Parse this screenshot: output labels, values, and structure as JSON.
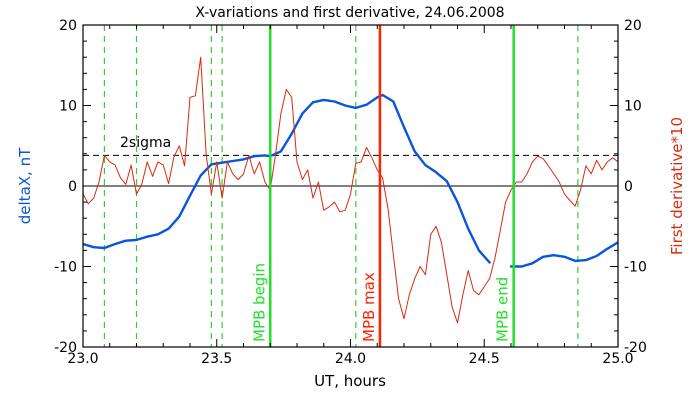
{
  "chart_data": {
    "type": "line",
    "title": "X-variations and first derivative, 24.06.2008",
    "xlabel": "UT, hours",
    "ylabel_left": "deltaX, nT",
    "ylabel_right": "First derivative*10",
    "xlim": [
      23.0,
      25.0
    ],
    "ylim": [
      -20,
      20
    ],
    "x_ticks": [
      23.0,
      23.5,
      24.0,
      24.5,
      25.0
    ],
    "x_tick_labels": [
      "23.0",
      "23.5",
      "24.0",
      "24.5",
      "25.0"
    ],
    "y_ticks": [
      -20,
      -10,
      0,
      10,
      20
    ],
    "y_tick_labels": [
      "-20",
      "-10",
      "0",
      "10",
      "20"
    ],
    "zero_line": 0,
    "sigma_line": {
      "y": 3.8,
      "label": "2sigma"
    },
    "colors": {
      "deltaX": "#0b56d6",
      "derivative": "#d82a10",
      "mpb_boundary": "#22e02a",
      "mpb_max": "#ff2200",
      "dashed_green": "#33cc33"
    },
    "dashed_markers": [
      23.08,
      23.2,
      23.48,
      23.52,
      24.02,
      24.85
    ],
    "mpb_lines": [
      {
        "x": 23.7,
        "label": "MPB begin",
        "kind": "boundary"
      },
      {
        "x": 24.11,
        "label": "MPB max",
        "kind": "max"
      },
      {
        "x": 24.61,
        "label": "MPB end",
        "kind": "boundary"
      }
    ],
    "series": [
      {
        "name": "deltaX",
        "segments": [
          {
            "x": [
              23.0,
              23.04,
              23.08,
              23.12,
              23.16,
              23.2,
              23.24,
              23.28,
              23.32,
              23.36,
              23.4,
              23.44,
              23.48,
              23.52,
              23.56,
              23.6,
              23.64,
              23.68,
              23.7,
              23.74,
              23.78,
              23.82,
              23.86,
              23.9,
              23.94,
              23.98,
              24.02,
              24.06,
              24.1,
              24.12,
              24.16,
              24.2,
              24.24,
              24.28,
              24.32,
              24.36,
              24.4,
              24.44,
              24.48,
              24.52
            ],
            "y": [
              -7.2,
              -7.6,
              -7.7,
              -7.2,
              -6.8,
              -6.7,
              -6.3,
              -6.0,
              -5.3,
              -3.8,
              -1.2,
              1.3,
              2.7,
              2.9,
              3.1,
              3.3,
              3.7,
              3.8,
              3.7,
              4.3,
              6.5,
              9.0,
              10.4,
              10.7,
              10.5,
              10.0,
              9.7,
              10.1,
              11.0,
              11.3,
              10.5,
              7.3,
              4.3,
              2.6,
              1.7,
              0.6,
              -2.0,
              -5.3,
              -8.0,
              -9.5
            ]
          },
          {
            "x": [
              24.6,
              24.64,
              24.68,
              24.72,
              24.76,
              24.8,
              24.84,
              24.88,
              24.92,
              24.96,
              25.0
            ],
            "y": [
              -10.0,
              -10.0,
              -9.6,
              -8.8,
              -8.6,
              -8.8,
              -9.3,
              -9.2,
              -8.7,
              -7.8,
              -7.0
            ]
          }
        ]
      },
      {
        "name": "First derivative*10",
        "x": [
          23.0,
          23.02,
          23.04,
          23.06,
          23.08,
          23.1,
          23.12,
          23.14,
          23.16,
          23.18,
          23.2,
          23.22,
          23.24,
          23.26,
          23.28,
          23.3,
          23.32,
          23.34,
          23.36,
          23.38,
          23.4,
          23.42,
          23.44,
          23.46,
          23.48,
          23.5,
          23.52,
          23.54,
          23.56,
          23.58,
          23.6,
          23.62,
          23.64,
          23.66,
          23.68,
          23.7,
          23.72,
          23.74,
          23.76,
          23.78,
          23.8,
          23.82,
          23.84,
          23.86,
          23.88,
          23.9,
          23.92,
          23.94,
          23.96,
          23.98,
          24.0,
          24.02,
          24.04,
          24.06,
          24.08,
          24.1,
          24.12,
          24.14,
          24.16,
          24.18,
          24.2,
          24.22,
          24.24,
          24.26,
          24.28,
          24.3,
          24.32,
          24.34,
          24.36,
          24.38,
          24.4,
          24.42,
          24.44,
          24.46,
          24.48,
          24.5,
          24.52,
          24.54,
          24.56,
          24.58,
          24.6,
          24.62,
          24.64,
          24.66,
          24.68,
          24.7,
          24.72,
          24.74,
          24.76,
          24.78,
          24.8,
          24.82,
          24.84,
          24.86,
          24.88,
          24.9,
          24.92,
          24.94,
          24.96,
          24.98,
          25.0
        ],
        "y": [
          -1.0,
          -2.2,
          -1.5,
          0.5,
          3.8,
          3.0,
          2.6,
          1.0,
          0.2,
          2.6,
          -1.0,
          0.2,
          3.0,
          1.2,
          3.0,
          2.6,
          0.3,
          3.6,
          5.0,
          2.5,
          11.0,
          11.2,
          16.0,
          4.0,
          -1.0,
          3.0,
          -1.5,
          3.0,
          1.5,
          0.8,
          1.5,
          3.8,
          1.5,
          3.0,
          0.5,
          -0.5,
          4.0,
          9.0,
          12.0,
          11.0,
          3.0,
          0.8,
          2.0,
          -1.5,
          0.5,
          -3.0,
          -2.6,
          -2.0,
          -3.2,
          -3.0,
          -1.0,
          2.8,
          3.0,
          4.8,
          3.5,
          2.0,
          1.0,
          -2.8,
          -8.5,
          -14.0,
          -16.5,
          -13.5,
          -11.5,
          -10.0,
          -11.0,
          -6.0,
          -5.0,
          -7.0,
          -11.0,
          -15.0,
          -17.0,
          -13.5,
          -10.5,
          -13.0,
          -13.5,
          -12.5,
          -11.5,
          -9.0,
          -5.5,
          -2.0,
          -0.5,
          0.5,
          0.5,
          1.5,
          3.0,
          3.7,
          3.4,
          2.5,
          1.5,
          0.5,
          -1.0,
          -1.8,
          -2.5,
          -0.5,
          2.5,
          1.5,
          3.2,
          2.0,
          3.0,
          3.5,
          3.0
        ]
      }
    ]
  }
}
